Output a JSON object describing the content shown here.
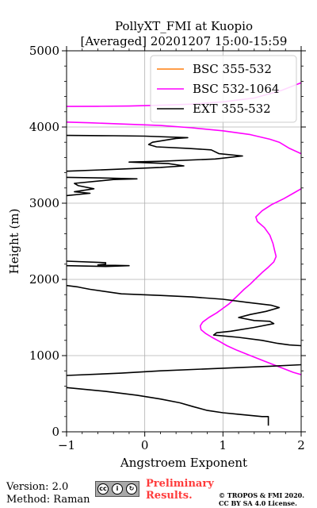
{
  "chart_data": {
    "type": "line",
    "title": [
      "PollyXT_FMI at Kuopio",
      "[Averaged] 20201207 15:00-15:59"
    ],
    "xlabel": "Angstroem Exponent",
    "ylabel": "Height (m)",
    "xlim": [
      -1,
      2
    ],
    "ylim": [
      0,
      5000
    ],
    "xticks": [
      -1,
      0,
      1,
      2
    ],
    "xtick_labels": [
      "−1",
      "0",
      "1",
      "2"
    ],
    "yticks": [
      0,
      1000,
      2000,
      3000,
      4000,
      5000
    ],
    "ytick_labels": [
      "0",
      "1000",
      "2000",
      "3000",
      "4000",
      "5000"
    ],
    "grid": true,
    "legend_position": "top-right",
    "series": [
      {
        "name": "BSC 355-532",
        "color": "#ff7f0e",
        "segments": []
      },
      {
        "name": "BSC 532-1064",
        "color": "#ff00ff",
        "segments": [
          [
            [
              2.0,
              750
            ],
            [
              1.9,
              780
            ],
            [
              1.75,
              840
            ],
            [
              1.55,
              920
            ],
            [
              1.35,
              1000
            ],
            [
              1.18,
              1070
            ],
            [
              1.05,
              1130
            ],
            [
              0.95,
              1190
            ],
            [
              0.86,
              1240
            ],
            [
              0.78,
              1290
            ],
            [
              0.72,
              1340
            ],
            [
              0.71,
              1390
            ],
            [
              0.74,
              1440
            ],
            [
              0.82,
              1500
            ],
            [
              0.92,
              1560
            ],
            [
              1.0,
              1620
            ],
            [
              1.08,
              1680
            ],
            [
              1.14,
              1740
            ],
            [
              1.2,
              1800
            ],
            [
              1.27,
              1870
            ],
            [
              1.35,
              1940
            ],
            [
              1.42,
              2010
            ],
            [
              1.5,
              2090
            ],
            [
              1.58,
              2160
            ],
            [
              1.65,
              2230
            ],
            [
              1.68,
              2300
            ],
            [
              1.66,
              2380
            ],
            [
              1.64,
              2470
            ],
            [
              1.6,
              2580
            ],
            [
              1.53,
              2680
            ],
            [
              1.44,
              2760
            ],
            [
              1.42,
              2820
            ],
            [
              1.5,
              2900
            ],
            [
              1.62,
              2980
            ],
            [
              1.78,
              3060
            ],
            [
              1.9,
              3130
            ],
            [
              2.0,
              3190
            ]
          ],
          [
            [
              2.0,
              3650
            ],
            [
              1.85,
              3720
            ],
            [
              1.72,
              3800
            ],
            [
              1.6,
              3840
            ],
            [
              1.35,
              3900
            ],
            [
              1.0,
              3950
            ],
            [
              0.6,
              3990
            ],
            [
              0.2,
              4020
            ],
            [
              -0.3,
              4040
            ],
            [
              -0.7,
              4055
            ],
            [
              -1.0,
              4065
            ]
          ],
          [
            [
              -1.0,
              4270
            ],
            [
              -0.6,
              4272
            ],
            [
              -0.2,
              4275
            ],
            [
              0.2,
              4285
            ],
            [
              0.6,
              4300
            ],
            [
              1.0,
              4330
            ],
            [
              1.4,
              4380
            ],
            [
              1.75,
              4480
            ],
            [
              2.0,
              4580
            ]
          ]
        ]
      },
      {
        "name": "EXT 355-532",
        "color": "#000000",
        "segments": [
          [
            [
              1.58,
              80
            ],
            [
              1.58,
              200
            ],
            [
              1.5,
              200
            ],
            [
              1.2,
              230
            ],
            [
              1.0,
              250
            ],
            [
              0.8,
              280
            ],
            [
              0.62,
              330
            ],
            [
              0.45,
              380
            ],
            [
              0.2,
              430
            ],
            [
              -0.1,
              480
            ],
            [
              -0.5,
              530
            ],
            [
              -1.0,
              580
            ]
          ],
          [
            [
              -1.0,
              740
            ],
            [
              -0.3,
              770
            ],
            [
              0.2,
              800
            ],
            [
              0.9,
              830
            ],
            [
              1.6,
              860
            ],
            [
              2.0,
              880
            ]
          ],
          [
            [
              2.0,
              1130
            ],
            [
              1.85,
              1140
            ],
            [
              1.7,
              1160
            ],
            [
              1.5,
              1200
            ],
            [
              1.2,
              1240
            ],
            [
              0.88,
              1270
            ],
            [
              0.92,
              1300
            ],
            [
              1.1,
              1320
            ],
            [
              1.4,
              1370
            ],
            [
              1.65,
              1420
            ],
            [
              1.6,
              1450
            ],
            [
              1.4,
              1460
            ],
            [
              1.2,
              1500
            ],
            [
              1.35,
              1540
            ],
            [
              1.55,
              1580
            ],
            [
              1.72,
              1630
            ],
            [
              1.62,
              1660
            ],
            [
              1.3,
              1700
            ],
            [
              1.0,
              1740
            ],
            [
              0.6,
              1770
            ],
            [
              0.2,
              1790
            ],
            [
              -0.3,
              1810
            ],
            [
              -0.7,
              1870
            ],
            [
              -0.8,
              1890
            ],
            [
              -0.85,
              1900
            ],
            [
              -1.0,
              1920
            ]
          ],
          [
            [
              -1.0,
              2180
            ],
            [
              -0.5,
              2170
            ],
            [
              -0.2,
              2180
            ],
            [
              -0.6,
              2190
            ],
            [
              -0.5,
              2200
            ],
            [
              -0.5,
              2220
            ],
            [
              -1.0,
              2240
            ]
          ],
          [
            [
              -1.0,
              3100
            ],
            [
              -0.7,
              3130
            ],
            [
              -0.9,
              3150
            ],
            [
              -0.65,
              3190
            ],
            [
              -0.85,
              3230
            ],
            [
              -0.9,
              3260
            ],
            [
              -0.4,
              3310
            ],
            [
              -0.1,
              3320
            ],
            [
              -0.5,
              3330
            ],
            [
              -1.0,
              3340
            ]
          ],
          [
            [
              -1.0,
              3420
            ],
            [
              -0.5,
              3440
            ],
            [
              0.2,
              3470
            ],
            [
              0.5,
              3490
            ],
            [
              0.3,
              3520
            ],
            [
              -0.2,
              3540
            ],
            [
              0.2,
              3550
            ],
            [
              0.9,
              3580
            ],
            [
              1.25,
              3620
            ],
            [
              0.95,
              3650
            ],
            [
              0.85,
              3700
            ],
            [
              0.55,
              3720
            ],
            [
              0.15,
              3740
            ],
            [
              0.05,
              3770
            ],
            [
              0.1,
              3800
            ],
            [
              0.4,
              3850
            ],
            [
              0.55,
              3860
            ],
            [
              0.0,
              3880
            ],
            [
              -0.4,
              3885
            ],
            [
              -1.0,
              3890
            ]
          ]
        ]
      }
    ]
  },
  "footer": {
    "version": "Version: 2.0",
    "method": "Method: Raman",
    "preliminary_line1": "Preliminary",
    "preliminary_line2": "Results.",
    "copyright_line1": "© TROPOS & FMI 2020.",
    "copyright_line2": "CC BY SA 4.0 License.",
    "license_badge_icons": [
      "cc-icon",
      "by-icon",
      "sa-icon"
    ],
    "license_badge_symbols": [
      "cc",
      "i",
      "↻"
    ]
  }
}
